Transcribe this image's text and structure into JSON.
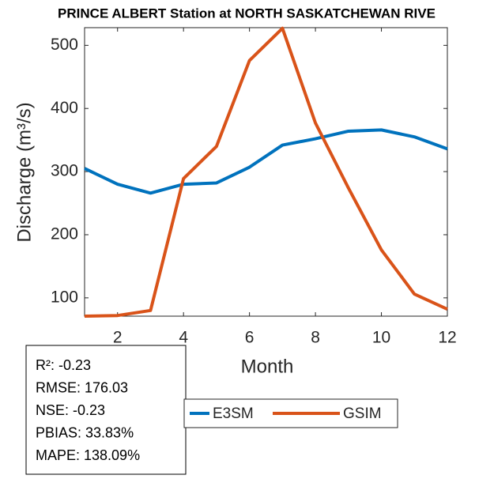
{
  "chart_data": {
    "type": "line",
    "title": "PRINCE ALBERT  Station at  NORTH SASKATCHEWAN RIVE",
    "x_label": "Month",
    "y_label": "Discharge (m³/s)",
    "x": [
      1,
      2,
      3,
      4,
      5,
      6,
      7,
      8,
      9,
      10,
      11,
      12
    ],
    "series": [
      {
        "name": "E3SM",
        "color": "#0072bd",
        "values": [
          305,
          280,
          266,
          280,
          282,
          307,
          342,
          352,
          364,
          366,
          355,
          336
        ]
      },
      {
        "name": "GSIM",
        "color": "#d95319",
        "values": [
          71,
          72,
          80,
          289,
          340,
          476,
          527,
          377,
          274,
          176,
          106,
          82
        ]
      }
    ],
    "xlim": [
      1,
      12
    ],
    "xticks": [
      2,
      4,
      6,
      8,
      10,
      12
    ],
    "ylim": [
      71,
      528
    ],
    "yticks": [
      100,
      200,
      300,
      400,
      500
    ],
    "annotations": [
      "R²: -0.23",
      "RMSE: 176.03",
      "NSE: -0.23",
      "PBIAS: 33.83%",
      "MAPE: 138.09%"
    ]
  }
}
